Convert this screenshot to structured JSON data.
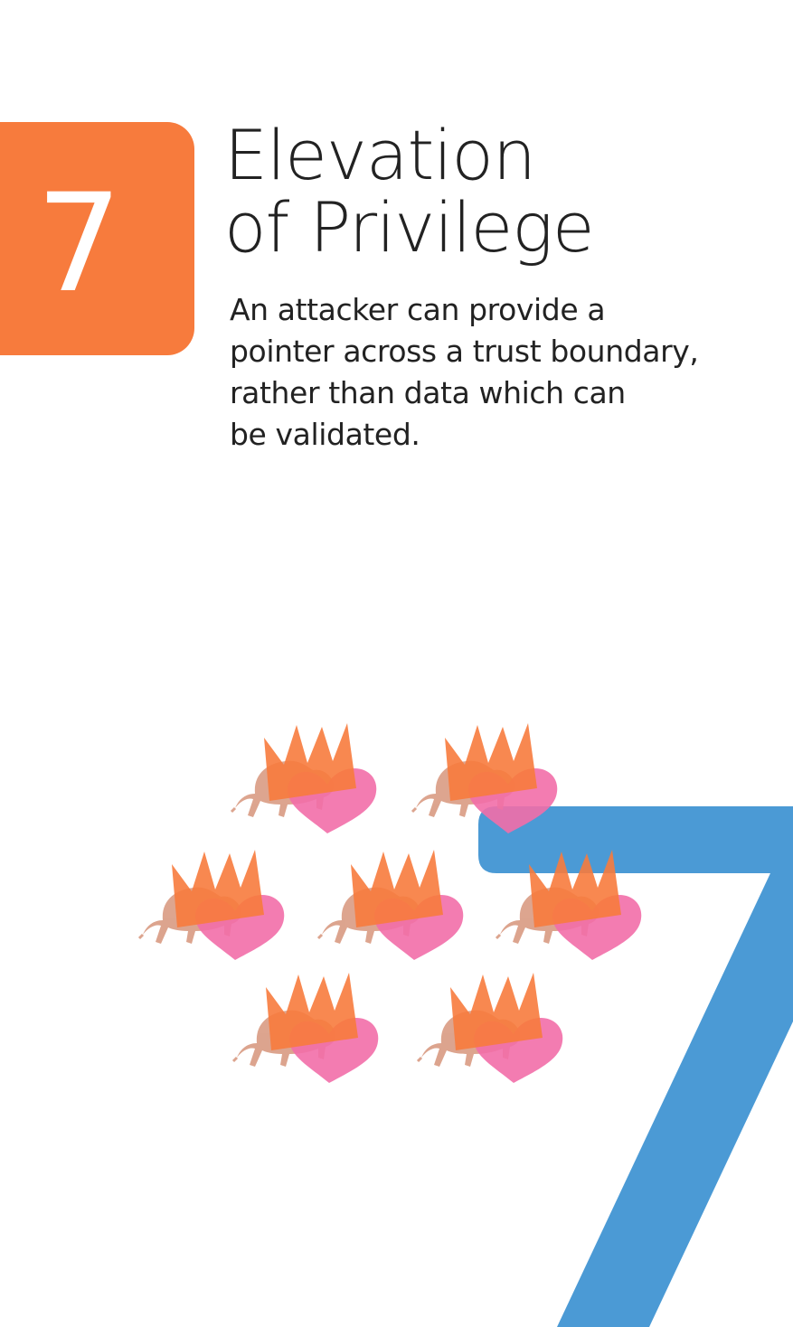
{
  "card": {
    "rank": "7",
    "title_lines": [
      "Elevation",
      "of Privilege"
    ],
    "description_lines": [
      "An attacker can provide a",
      "pointer across a trust boundary,",
      "rather than data which can",
      "be validated."
    ]
  },
  "suit_count": 7,
  "colors": {
    "badge": "#f77b3d",
    "big_seven": "#4b9ad5",
    "crown": "#f77b3d",
    "heart": "#f26ea8",
    "bison": "#d7957b",
    "text": "#222222"
  },
  "icons": [
    "bison-icon",
    "heart-icon",
    "crown-icon",
    "big-seven-graphic"
  ]
}
